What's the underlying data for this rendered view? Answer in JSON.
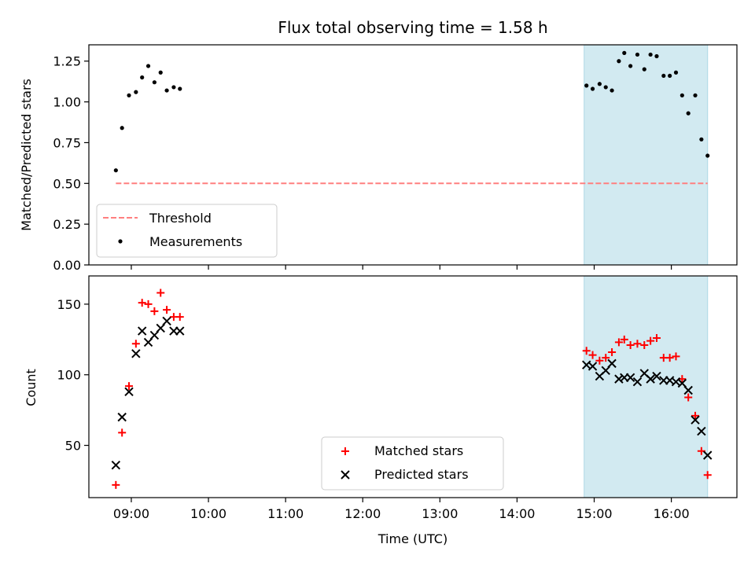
{
  "chart_data": {
    "title": "Flux total observing time = 1.58 h",
    "xlabel": "Time (UTC)",
    "x_tick_labels": [
      "09:00",
      "10:00",
      "11:00",
      "12:00",
      "13:00",
      "14:00",
      "15:00",
      "16:00"
    ],
    "x_ticks_hours": [
      9,
      10,
      11,
      12,
      13,
      14,
      15,
      16
    ],
    "xlim_hours": [
      8.45,
      16.85
    ],
    "shaded_span_hours": [
      14.87,
      16.47
    ],
    "shade_color": "#add8e6",
    "panels": [
      {
        "type": "scatter",
        "ylabel": "Matched/Predicted stars",
        "ylim": [
          0,
          1.35
        ],
        "y_ticks": [
          0,
          0.25,
          0.5,
          0.75,
          1.0,
          1.25
        ],
        "y_tick_labels": [
          "0.00",
          "0.25",
          "0.50",
          "0.75",
          "1.00",
          "1.25"
        ],
        "threshold": {
          "name": "Threshold",
          "value": 0.5,
          "x_range_hours": [
            8.8,
            16.47
          ],
          "color": "#ff7f7f",
          "style": "dashed"
        },
        "series": [
          {
            "name": "Measurements",
            "marker": "dot",
            "color": "#000000",
            "points": [
              [
                8.8,
                0.58
              ],
              [
                8.88,
                0.84
              ],
              [
                8.97,
                1.04
              ],
              [
                9.06,
                1.06
              ],
              [
                9.14,
                1.15
              ],
              [
                9.22,
                1.22
              ],
              [
                9.3,
                1.12
              ],
              [
                9.38,
                1.18
              ],
              [
                9.46,
                1.07
              ],
              [
                9.55,
                1.09
              ],
              [
                9.63,
                1.08
              ],
              [
                14.9,
                1.1
              ],
              [
                14.98,
                1.08
              ],
              [
                15.07,
                1.11
              ],
              [
                15.15,
                1.09
              ],
              [
                15.23,
                1.07
              ],
              [
                15.32,
                1.25
              ],
              [
                15.39,
                1.3
              ],
              [
                15.47,
                1.22
              ],
              [
                15.56,
                1.29
              ],
              [
                15.65,
                1.2
              ],
              [
                15.73,
                1.29
              ],
              [
                15.81,
                1.28
              ],
              [
                15.9,
                1.16
              ],
              [
                15.98,
                1.16
              ],
              [
                16.06,
                1.18
              ],
              [
                16.14,
                1.04
              ],
              [
                16.22,
                0.93
              ],
              [
                16.31,
                1.04
              ],
              [
                16.39,
                0.77
              ],
              [
                16.47,
                0.67
              ]
            ]
          }
        ],
        "legend": {
          "location": "lower-left"
        }
      },
      {
        "type": "scatter",
        "ylabel": "Count",
        "ylim": [
          13,
          170
        ],
        "y_ticks": [
          50,
          100,
          150
        ],
        "y_tick_labels": [
          "50",
          "100",
          "150"
        ],
        "series": [
          {
            "name": "Matched stars",
            "marker": "plus",
            "color": "#ff0000",
            "points": [
              [
                8.8,
                22
              ],
              [
                8.88,
                59
              ],
              [
                8.97,
                92
              ],
              [
                9.06,
                122
              ],
              [
                9.14,
                151
              ],
              [
                9.22,
                150
              ],
              [
                9.3,
                145
              ],
              [
                9.38,
                158
              ],
              [
                9.46,
                146
              ],
              [
                9.55,
                141
              ],
              [
                9.63,
                141
              ],
              [
                14.9,
                117
              ],
              [
                14.98,
                114
              ],
              [
                15.07,
                110
              ],
              [
                15.15,
                112
              ],
              [
                15.23,
                116
              ],
              [
                15.32,
                123
              ],
              [
                15.39,
                125
              ],
              [
                15.47,
                121
              ],
              [
                15.56,
                122
              ],
              [
                15.65,
                121
              ],
              [
                15.73,
                124
              ],
              [
                15.81,
                126
              ],
              [
                15.9,
                112
              ],
              [
                15.98,
                112
              ],
              [
                16.06,
                113
              ],
              [
                16.14,
                97
              ],
              [
                16.22,
                84
              ],
              [
                16.31,
                71
              ],
              [
                16.39,
                46
              ],
              [
                16.47,
                29
              ]
            ]
          },
          {
            "name": "Predicted stars",
            "marker": "x",
            "color": "#000000",
            "points": [
              [
                8.8,
                36
              ],
              [
                8.88,
                70
              ],
              [
                8.97,
                88
              ],
              [
                9.06,
                115
              ],
              [
                9.14,
                131
              ],
              [
                9.22,
                123
              ],
              [
                9.3,
                128
              ],
              [
                9.38,
                133
              ],
              [
                9.46,
                138
              ],
              [
                9.55,
                131
              ],
              [
                9.63,
                131
              ],
              [
                14.9,
                107
              ],
              [
                14.98,
                106
              ],
              [
                15.07,
                99
              ],
              [
                15.15,
                103
              ],
              [
                15.23,
                108
              ],
              [
                15.32,
                97
              ],
              [
                15.39,
                98
              ],
              [
                15.47,
                98
              ],
              [
                15.56,
                95
              ],
              [
                15.65,
                101
              ],
              [
                15.73,
                97
              ],
              [
                15.81,
                99
              ],
              [
                15.9,
                96
              ],
              [
                15.98,
                96
              ],
              [
                16.06,
                95
              ],
              [
                16.14,
                94
              ],
              [
                16.22,
                89
              ],
              [
                16.31,
                68
              ],
              [
                16.39,
                60
              ],
              [
                16.47,
                43
              ]
            ]
          }
        ],
        "legend": {
          "location": "lower-center"
        }
      }
    ]
  }
}
